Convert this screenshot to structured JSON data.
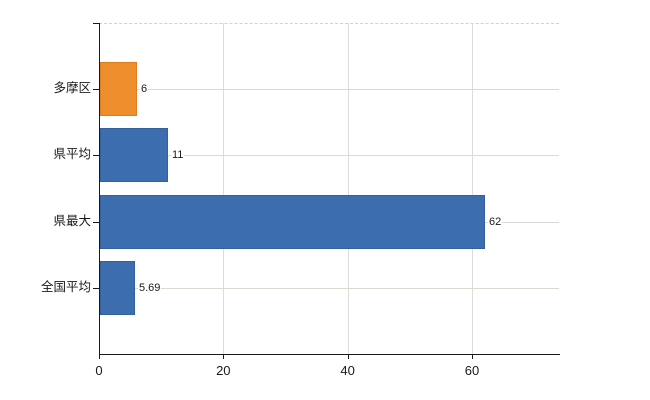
{
  "chart_data": {
    "type": "bar",
    "orientation": "horizontal",
    "title": "",
    "xlabel": "",
    "ylabel": "",
    "categories": [
      "多摩区",
      "県平均",
      "県最大",
      "全国平均"
    ],
    "values": [
      6,
      11,
      62,
      5.69
    ],
    "value_labels": [
      "6",
      "11",
      "62",
      "5.69"
    ],
    "bar_colors": [
      "#ee8e2c",
      "#3c6dae",
      "#3c6dae",
      "#3c6dae"
    ],
    "bar_border_colors": [
      "#dd7d1d",
      "#33619e",
      "#33619e",
      "#33619e"
    ],
    "x_ticks": [
      0,
      20,
      40,
      60
    ],
    "x_tick_labels": [
      "0",
      "20",
      "40",
      "60"
    ],
    "xlim": [
      0,
      74
    ],
    "grid": "on",
    "legend": "none"
  },
  "colors": {
    "background": "#ffffff",
    "axis": "#1a1a1a",
    "gridline_h": "#d7dcd3",
    "gridline_v": "#dadeda",
    "top_border_dashed": "#d2d2d2",
    "text": "#1a1a1a",
    "accent_orange": "#ee8e2c",
    "accent_blue": "#3c6dae"
  }
}
